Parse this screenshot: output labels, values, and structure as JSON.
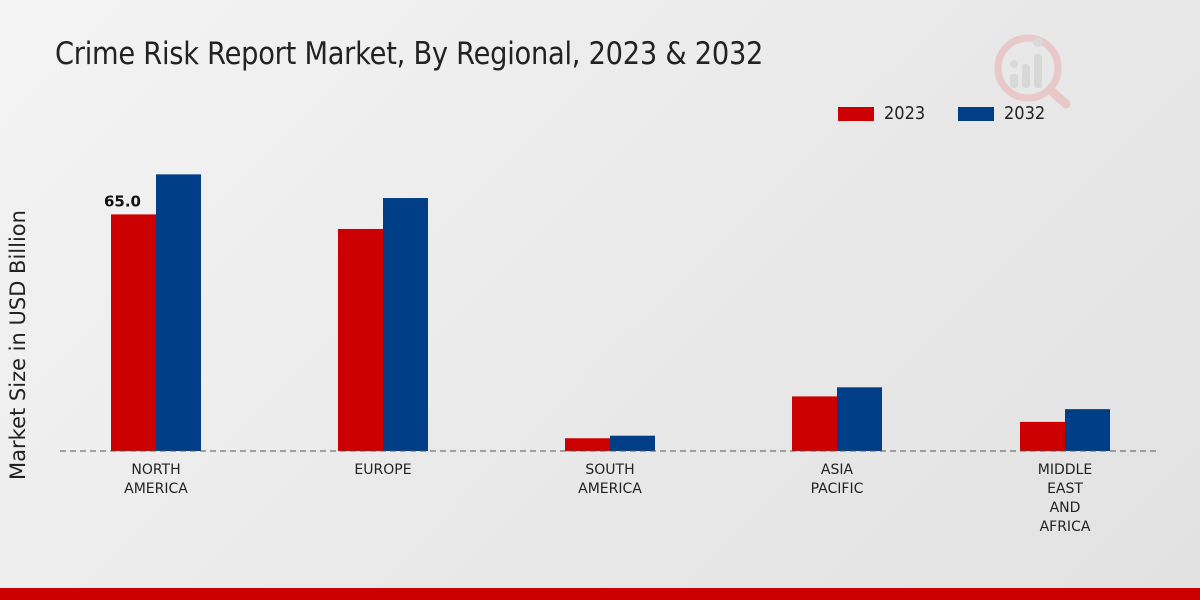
{
  "chart_data": {
    "type": "bar",
    "title": "Crime Risk Report Market, By Regional, 2023 & 2032",
    "ylabel": "Market Size in USD Billion",
    "xlabel": "",
    "categories": [
      "NORTH\nAMERICA",
      "EUROPE",
      "SOUTH\nAMERICA",
      "ASIA\nPACIFIC",
      "MIDDLE\nEAST\nAND\nAFRICA"
    ],
    "series": [
      {
        "name": "2023",
        "color": "#cc0000",
        "values": [
          65.0,
          61.0,
          3.5,
          15.0,
          8.0
        ]
      },
      {
        "name": "2032",
        "color": "#003f87",
        "values": [
          76.0,
          69.5,
          4.2,
          17.5,
          11.5
        ]
      }
    ],
    "data_labels": [
      {
        "series": 0,
        "category": 0,
        "text": "65.0"
      }
    ],
    "ylim": [
      0,
      100
    ],
    "legend": "top-right",
    "grid": false,
    "baseline_style": "dashed"
  }
}
